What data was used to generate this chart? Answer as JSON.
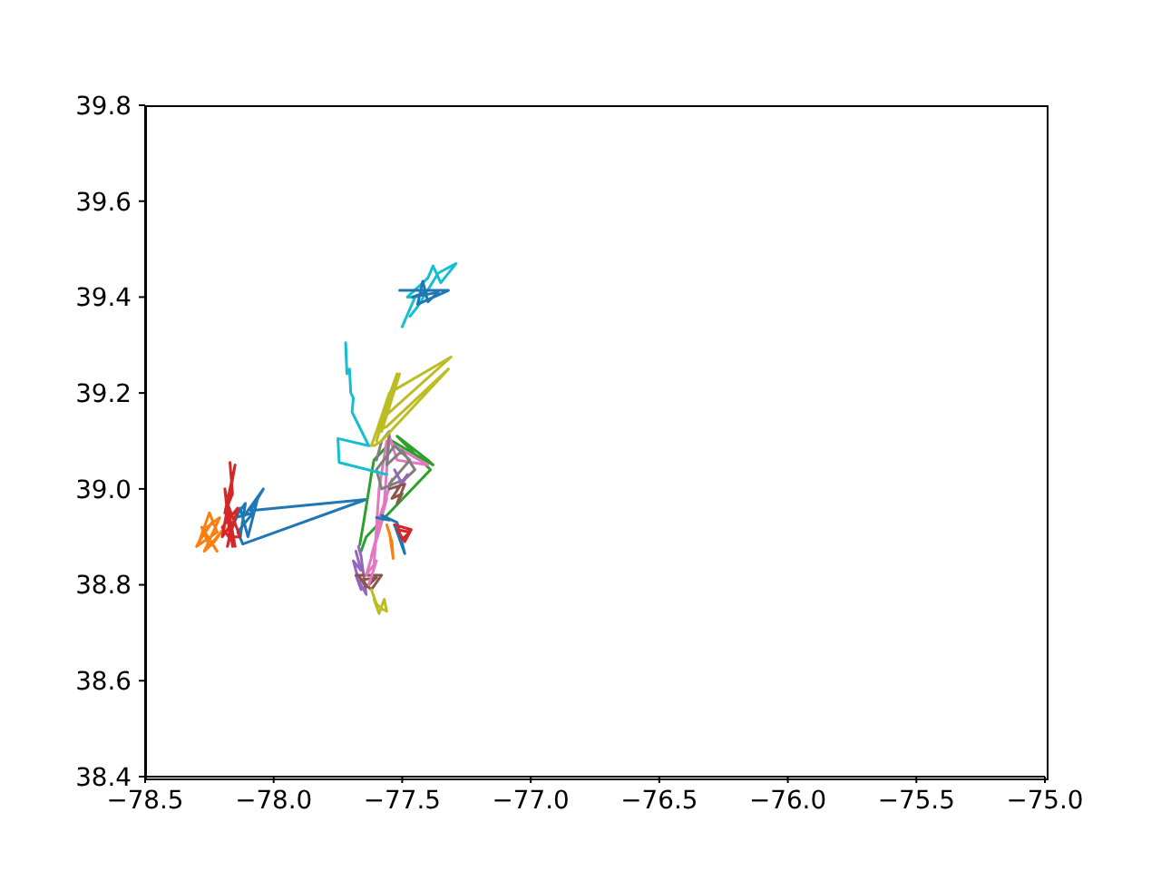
{
  "chart_data": {
    "type": "line",
    "marker": "none",
    "line_style": "solid",
    "xlim": [
      -78.5,
      -75
    ],
    "ylim": [
      38.4,
      39.8
    ],
    "xticks": [
      {
        "value": -78.5,
        "label": "−78.5"
      },
      {
        "value": -78,
        "label": "−78.0"
      },
      {
        "value": -77.5,
        "label": "−77.5"
      },
      {
        "value": -77,
        "label": "−77.0"
      },
      {
        "value": -76.5,
        "label": "−76.5"
      },
      {
        "value": -76,
        "label": "−76.0"
      },
      {
        "value": -75.5,
        "label": "−75.5"
      },
      {
        "value": -75,
        "label": "−75.0"
      }
    ],
    "yticks": [
      38.4,
      38.6,
      38.8,
      {
        "value": 39,
        "label": "39.0"
      },
      39.2,
      39.4,
      39.6,
      39.8
    ],
    "series": [
      {
        "color": "#1f77b4",
        "x": [
          -78.16,
          -78.13,
          -78.1,
          -78.06,
          -78.12,
          -78.04,
          -78.09,
          -77.64,
          -78.12,
          -78.14,
          -78.08,
          -78.15,
          -78.11,
          -78.13
        ],
        "values": [
          38.92,
          38.96,
          38.9,
          38.985,
          38.94,
          39.0,
          38.955,
          38.978,
          38.885,
          38.91,
          38.95,
          38.94,
          38.97,
          38.9
        ]
      },
      {
        "color": "#ff7f0e",
        "x": [
          -78.28,
          -78.24,
          -78.29,
          -78.25,
          -78.22,
          -78.3,
          -78.26,
          -78.21,
          -78.27,
          -78.23,
          -78.19,
          -78.25,
          -78.28,
          -78.22
        ],
        "values": [
          38.9,
          38.93,
          38.89,
          38.95,
          38.91,
          38.88,
          38.92,
          38.94,
          38.87,
          38.89,
          38.92,
          38.88,
          38.92,
          38.87
        ]
      },
      {
        "color": "#2ca02c",
        "x": [
          -77.665,
          -77.65,
          -77.62,
          -77.61,
          -77.54,
          -77.38,
          -77.4,
          -77.52,
          -77.39,
          -77.64,
          -77.66
        ],
        "values": [
          38.884,
          38.93,
          39.03,
          39.06,
          39.1,
          39.05,
          39.06,
          39.11,
          39.04,
          38.9,
          38.87
        ]
      },
      {
        "color": "#d62728",
        "x": [
          -78.17,
          -78.16,
          -78.19,
          -78.15,
          -78.2,
          -78.16,
          -78.18,
          -78.14,
          -78.2,
          -78.15,
          -78.19,
          -78.17,
          -78.13,
          -78.18,
          -78.16
        ],
        "values": [
          39.055,
          38.99,
          38.95,
          39.05,
          38.9,
          38.93,
          38.88,
          38.96,
          38.92,
          38.88,
          39.0,
          38.9,
          38.9,
          38.97,
          38.88
        ]
      },
      {
        "color": "#9467bd",
        "x": [
          -77.68,
          -77.66,
          -77.69,
          -77.66,
          -77.68,
          -77.64,
          -77.66,
          -77.67
        ],
        "values": [
          38.87,
          38.83,
          38.85,
          38.79,
          38.82,
          38.78,
          38.86,
          38.88
        ]
      },
      {
        "color": "#8c564b",
        "x": [
          -77.68,
          -77.58,
          -77.62,
          -77.66,
          -77.6,
          -77.64,
          -77.67
        ],
        "values": [
          38.82,
          38.82,
          38.79,
          38.81,
          38.815,
          38.795,
          38.82
        ]
      },
      {
        "color": "#e377c2",
        "x": [
          -77.63,
          -77.6,
          -77.64,
          -77.58,
          -77.62,
          -77.56,
          -77.6,
          -77.54,
          -77.57,
          -77.55,
          -77.52,
          -77.4,
          -77.53,
          -77.56,
          -77.59,
          -77.61
        ],
        "values": [
          38.8,
          38.85,
          38.82,
          38.93,
          38.86,
          38.98,
          38.92,
          39.02,
          38.97,
          39.11,
          39.06,
          39.05,
          39.09,
          39.1,
          39.0,
          38.84
        ]
      },
      {
        "color": "#7f7f7f",
        "x": [
          -77.6,
          -77.58,
          -77.55,
          -77.56,
          -77.5,
          -77.45,
          -77.49,
          -77.58,
          -77.6,
          -77.53,
          -77.47,
          -77.55
        ],
        "values": [
          39.06,
          39.1,
          39.12,
          39.05,
          39.08,
          39.04,
          39.02,
          39.0,
          39.04,
          39.09,
          39.06,
          39.01
        ]
      },
      {
        "color": "#bcbd22",
        "x": [
          -77.62,
          -77.52,
          -77.6,
          -77.53,
          -77.58,
          -77.51,
          -77.57,
          -77.31,
          -77.55,
          -77.6,
          -77.56,
          -77.32,
          -77.58,
          -77.61
        ],
        "values": [
          39.09,
          39.24,
          39.1,
          39.22,
          39.12,
          39.24,
          39.15,
          39.275,
          39.2,
          39.12,
          39.13,
          39.25,
          39.1,
          39.09
        ]
      },
      {
        "color": "#17becf",
        "x": [
          -77.72,
          -77.715,
          -77.705,
          -77.7,
          -77.69,
          -77.695,
          -77.63,
          -77.75,
          -77.745,
          -77.56
        ],
        "values": [
          39.305,
          39.24,
          39.25,
          39.2,
          39.19,
          39.16,
          39.09,
          39.105,
          39.055,
          39.03
        ]
      },
      {
        "color": "#1f77b4",
        "x": [
          -77.6,
          -77.55,
          -77.58,
          -77.52,
          -77.49,
          -77.53
        ],
        "values": [
          38.94,
          38.935,
          38.945,
          38.93,
          38.865,
          38.925
        ]
      },
      {
        "color": "#ff7f0e",
        "x": [
          -77.56,
          -77.54,
          -77.535,
          -77.55
        ],
        "values": [
          38.925,
          38.89,
          38.855,
          38.91
        ]
      },
      {
        "color": "#d62728",
        "x": [
          -77.53,
          -77.465,
          -77.49,
          -77.52,
          -77.47,
          -77.5
        ],
        "values": [
          38.925,
          38.915,
          38.89,
          38.915,
          38.91,
          38.895
        ]
      },
      {
        "color": "#9467bd",
        "x": [
          -77.53,
          -77.5,
          -77.48,
          -77.52
        ],
        "values": [
          39.04,
          39.01,
          39.03,
          39.0
        ]
      },
      {
        "color": "#8c564b",
        "x": [
          -77.55,
          -77.49,
          -77.52,
          -77.5,
          -77.54,
          -77.51
        ],
        "values": [
          39.0,
          39.01,
          38.97,
          38.99,
          38.98,
          39.005
        ]
      },
      {
        "color": "#bcbd22",
        "x": [
          -77.62,
          -77.6,
          -77.58,
          -77.56,
          -77.57,
          -77.59,
          -77.61
        ],
        "values": [
          38.79,
          38.76,
          38.75,
          38.745,
          38.77,
          38.74,
          38.77
        ]
      },
      {
        "color": "#17becf",
        "x": [
          -77.5,
          -77.45,
          -77.48,
          -77.4,
          -77.38,
          -77.35,
          -77.29,
          -77.36,
          -77.44,
          -77.47
        ],
        "values": [
          39.338,
          39.4,
          39.4,
          39.44,
          39.465,
          39.43,
          39.47,
          39.45,
          39.38,
          39.36
        ]
      },
      {
        "color": "#1f77b4",
        "x": [
          -77.51,
          -77.32,
          -77.44,
          -77.42,
          -77.4,
          -77.36,
          -77.46,
          -77.41
        ],
        "values": [
          39.414,
          39.414,
          39.385,
          39.433,
          39.39,
          39.41,
          39.4,
          39.41
        ]
      }
    ]
  }
}
